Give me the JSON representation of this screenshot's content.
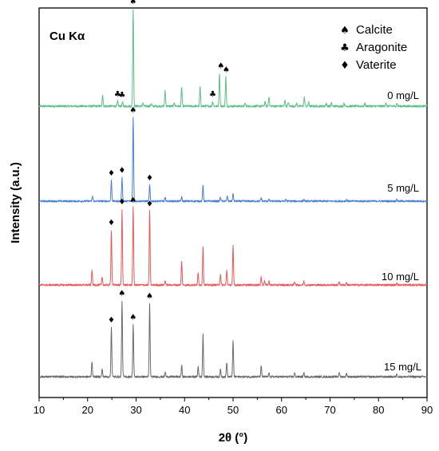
{
  "chart_data": {
    "type": "line",
    "radiation": "Cu Kα",
    "xlabel": "2θ (°)",
    "ylabel": "Intensity (a.u.)",
    "xlim": [
      10,
      90
    ],
    "xticks": [
      "10",
      "20",
      "30",
      "40",
      "50",
      "60",
      "70",
      "80",
      "90"
    ],
    "y_ticks_shown": false,
    "legend": {
      "placement": "top-right",
      "entries": [
        {
          "phase": "Calcite",
          "symbol": "♠"
        },
        {
          "phase": "Aragonite",
          "symbol": "♣"
        },
        {
          "phase": "Vaterite",
          "symbol": "♦"
        }
      ]
    },
    "series": [
      {
        "name": "0 mg/L",
        "color": "#5dbf85",
        "peaks": [
          {
            "x": 23.1,
            "h": 0.12
          },
          {
            "x": 26.2,
            "h": 0.05
          },
          {
            "x": 27.2,
            "h": 0.04
          },
          {
            "x": 29.4,
            "h": 1.0
          },
          {
            "x": 31.4,
            "h": 0.03
          },
          {
            "x": 33.1,
            "h": 0.03
          },
          {
            "x": 36.0,
            "h": 0.16
          },
          {
            "x": 37.9,
            "h": 0.04
          },
          {
            "x": 39.4,
            "h": 0.2
          },
          {
            "x": 43.2,
            "h": 0.2
          },
          {
            "x": 45.8,
            "h": 0.05
          },
          {
            "x": 47.2,
            "h": 0.34
          },
          {
            "x": 48.5,
            "h": 0.3
          },
          {
            "x": 52.5,
            "h": 0.03
          },
          {
            "x": 56.6,
            "h": 0.05
          },
          {
            "x": 57.4,
            "h": 0.1
          },
          {
            "x": 60.7,
            "h": 0.07
          },
          {
            "x": 61.4,
            "h": 0.04
          },
          {
            "x": 63.1,
            "h": 0.03
          },
          {
            "x": 64.7,
            "h": 0.09
          },
          {
            "x": 65.6,
            "h": 0.04
          },
          {
            "x": 69.2,
            "h": 0.03
          },
          {
            "x": 70.3,
            "h": 0.03
          },
          {
            "x": 72.9,
            "h": 0.03
          },
          {
            "x": 77.2,
            "h": 0.03
          },
          {
            "x": 81.5,
            "h": 0.04
          },
          {
            "x": 83.8,
            "h": 0.03
          }
        ],
        "markers": [
          {
            "x": 29.4,
            "phase": "Calcite"
          },
          {
            "x": 26.2,
            "phase": "Aragonite"
          },
          {
            "x": 27.1,
            "phase": "Aragonite"
          },
          {
            "x": 45.8,
            "phase": "Aragonite"
          },
          {
            "x": 47.5,
            "phase": "Calcite"
          },
          {
            "x": 48.6,
            "phase": "Calcite"
          }
        ]
      },
      {
        "name": "5 mg/L",
        "color": "#4a7fd0",
        "peaks": [
          {
            "x": 21.0,
            "h": 0.06
          },
          {
            "x": 24.9,
            "h": 0.25
          },
          {
            "x": 27.1,
            "h": 0.28
          },
          {
            "x": 29.4,
            "h": 1.0
          },
          {
            "x": 32.8,
            "h": 0.19
          },
          {
            "x": 36.0,
            "h": 0.04
          },
          {
            "x": 39.4,
            "h": 0.05
          },
          {
            "x": 43.8,
            "h": 0.18
          },
          {
            "x": 47.4,
            "h": 0.05
          },
          {
            "x": 48.8,
            "h": 0.06
          },
          {
            "x": 50.0,
            "h": 0.09
          },
          {
            "x": 55.8,
            "h": 0.04
          },
          {
            "x": 57.4,
            "h": 0.02
          },
          {
            "x": 60.9,
            "h": 0.02
          },
          {
            "x": 64.6,
            "h": 0.02
          },
          {
            "x": 73.4,
            "h": 0.02
          },
          {
            "x": 83.8,
            "h": 0.02
          }
        ],
        "markers": [
          {
            "x": 24.9,
            "phase": "Vaterite"
          },
          {
            "x": 27.1,
            "phase": "Vaterite"
          },
          {
            "x": 29.4,
            "phase": "Calcite"
          },
          {
            "x": 32.8,
            "phase": "Vaterite"
          }
        ]
      },
      {
        "name": "10 mg/L",
        "color": "#e85a5a",
        "peaks": [
          {
            "x": 20.9,
            "h": 0.17
          },
          {
            "x": 23.0,
            "h": 0.09
          },
          {
            "x": 24.9,
            "h": 0.61
          },
          {
            "x": 27.1,
            "h": 0.84
          },
          {
            "x": 29.4,
            "h": 0.86
          },
          {
            "x": 32.8,
            "h": 0.82
          },
          {
            "x": 36.0,
            "h": 0.05
          },
          {
            "x": 39.4,
            "h": 0.26
          },
          {
            "x": 42.8,
            "h": 0.13
          },
          {
            "x": 43.8,
            "h": 0.43
          },
          {
            "x": 47.4,
            "h": 0.12
          },
          {
            "x": 48.7,
            "h": 0.16
          },
          {
            "x": 50.0,
            "h": 0.43
          },
          {
            "x": 55.8,
            "h": 0.09
          },
          {
            "x": 56.5,
            "h": 0.05
          },
          {
            "x": 57.4,
            "h": 0.04
          },
          {
            "x": 62.7,
            "h": 0.04
          },
          {
            "x": 64.6,
            "h": 0.04
          },
          {
            "x": 71.9,
            "h": 0.04
          },
          {
            "x": 73.4,
            "h": 0.03
          },
          {
            "x": 83.8,
            "h": 0.03
          }
        ],
        "markers": [
          {
            "x": 24.9,
            "phase": "Vaterite"
          },
          {
            "x": 27.1,
            "phase": "Vaterite"
          },
          {
            "x": 29.4,
            "phase": "Calcite"
          },
          {
            "x": 32.8,
            "phase": "Vaterite"
          }
        ]
      },
      {
        "name": "15 mg/L",
        "color": "#6a6a6a",
        "peaks": [
          {
            "x": 20.9,
            "h": 0.17
          },
          {
            "x": 23.0,
            "h": 0.08
          },
          {
            "x": 24.9,
            "h": 0.54
          },
          {
            "x": 27.1,
            "h": 0.83
          },
          {
            "x": 29.4,
            "h": 0.57
          },
          {
            "x": 32.8,
            "h": 0.8
          },
          {
            "x": 36.0,
            "h": 0.05
          },
          {
            "x": 39.4,
            "h": 0.12
          },
          {
            "x": 42.8,
            "h": 0.11
          },
          {
            "x": 43.8,
            "h": 0.46
          },
          {
            "x": 47.4,
            "h": 0.08
          },
          {
            "x": 48.7,
            "h": 0.16
          },
          {
            "x": 50.0,
            "h": 0.39
          },
          {
            "x": 55.8,
            "h": 0.11
          },
          {
            "x": 57.4,
            "h": 0.04
          },
          {
            "x": 62.7,
            "h": 0.04
          },
          {
            "x": 64.6,
            "h": 0.04
          },
          {
            "x": 71.9,
            "h": 0.05
          },
          {
            "x": 73.4,
            "h": 0.04
          },
          {
            "x": 83.8,
            "h": 0.03
          }
        ],
        "markers": [
          {
            "x": 24.9,
            "phase": "Vaterite"
          },
          {
            "x": 27.1,
            "phase": "Calcite"
          },
          {
            "x": 29.4,
            "phase": "Calcite"
          },
          {
            "x": 32.8,
            "phase": "Calcite"
          }
        ]
      }
    ]
  }
}
